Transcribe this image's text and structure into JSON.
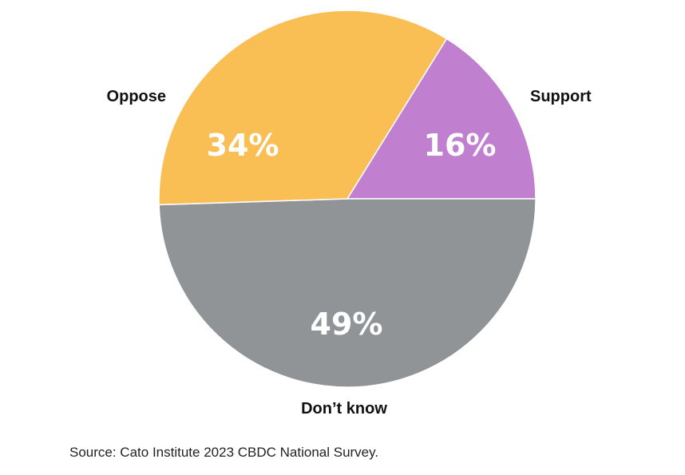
{
  "chart_data": {
    "type": "pie",
    "slices": [
      {
        "label": "Support",
        "value": 16,
        "display": "16%",
        "color": "#c17fcf"
      },
      {
        "label": "Don’t know",
        "value": 49,
        "display": "49%",
        "color": "#909496"
      },
      {
        "label": "Oppose",
        "value": 34,
        "display": "34%",
        "color": "#f9bf55"
      }
    ]
  },
  "source": "Source: Cato Institute 2023 CBDC National Survey."
}
